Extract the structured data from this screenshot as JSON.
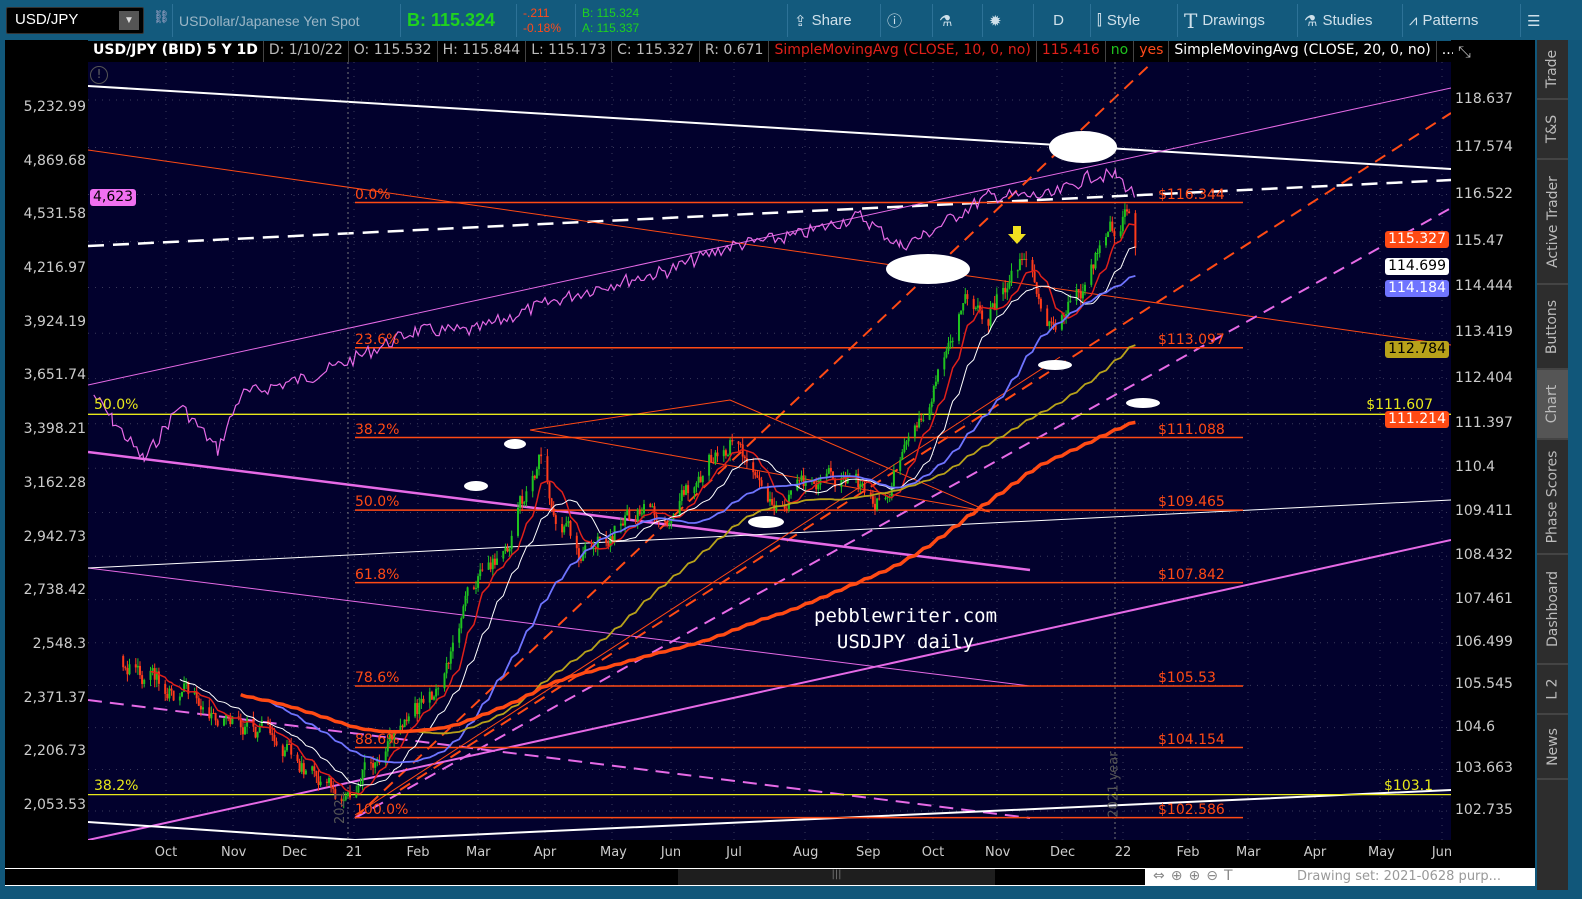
{
  "toolbar": {
    "symbol": "USD/JPY",
    "description": "USDollar/Japanese Yen Spot",
    "bid_big": "B: 115.324",
    "change": "-.211",
    "change_pct": "-0.18%",
    "bid": "B: 115.324",
    "ask": "A: 115.337",
    "buttons": {
      "share": "Share",
      "period": "D",
      "style": "Style",
      "drawings": "Drawings",
      "studies": "Studies",
      "patterns": "Patterns"
    }
  },
  "infobar": {
    "title": "USD/JPY (BID) 5 Y 1D",
    "date": "D: 1/10/22",
    "open": "O: 115.532",
    "high": "H: 115.844",
    "low": "L: 115.173",
    "close": "C: 115.327",
    "range": "R: 0.671",
    "study1": "SimpleMovingAvg (CLOSE, 10, 0, no)",
    "study1_value": "115.416",
    "no": "no",
    "yes": "yes",
    "study2": "SimpleMovingAvg (CLOSE, 20, 0, no)",
    "more": "..."
  },
  "sidebar": [
    "Trade",
    "T&S",
    "Active Trader",
    "Buttons",
    "Chart",
    "Phase Scores",
    "Dashboard",
    "L 2",
    "News"
  ],
  "sidebar_selected": "Chart",
  "status": {
    "drawing_set": "Drawing set: 2021-0628 purp..."
  },
  "colors": {
    "toolbar": "#135a7d",
    "chart_bg": "#02012d",
    "up": "#1fc21f",
    "down": "#ff3b1a",
    "sma10": "#e0201a",
    "sma20": "#ffffff",
    "sma50": "#6f74ff",
    "sma100": "#b8a21a",
    "sma200": "#ff4a14",
    "spx": "#e66ae6",
    "fib": "#ff4a14",
    "yellow": "#e8e81a"
  },
  "chart_data": {
    "type": "candlestick",
    "x_ticks": [
      "Oct",
      "Nov",
      "Dec",
      "21",
      "Feb",
      "Mar",
      "Apr",
      "May",
      "Jun",
      "Jul",
      "Aug",
      "Sep",
      "Oct",
      "Nov",
      "Dec",
      "22",
      "Feb",
      "Mar",
      "Apr",
      "May",
      "Jun"
    ],
    "right_axis_ticks": [
      "118.637",
      "117.574",
      "116.522",
      "115.47",
      "114.444",
      "113.419",
      "112.404",
      "111.397",
      "110.4",
      "109.411",
      "108.432",
      "107.461",
      "106.499",
      "105.545",
      "104.6",
      "103.663",
      "102.735"
    ],
    "left_axis_ticks": [
      "5,232.99",
      "4,869.68",
      "4,531.58",
      "4,216.97",
      "3,924.19",
      "3,651.74",
      "3,398.21",
      "3,162.28",
      "2,942.73",
      "2,738.42",
      "2,548.3",
      "2,371.37",
      "2,206.73",
      "2,053.53"
    ],
    "left_axis_scale": "log",
    "price_path": [
      [
        "2020-09-15",
        106.2
      ],
      [
        "2020-10-01",
        105.7
      ],
      [
        "2020-11-01",
        104.8
      ],
      [
        "2020-12-01",
        104.1
      ],
      [
        "2021-01-01",
        103.1
      ],
      [
        "2021-01-15",
        103.9
      ],
      [
        "2021-02-01",
        104.8
      ],
      [
        "2021-02-15",
        105.7
      ],
      [
        "2021-03-01",
        107.5
      ],
      [
        "2021-03-20",
        109.2
      ],
      [
        "2021-04-01",
        110.6
      ],
      [
        "2021-04-20",
        108.3
      ],
      [
        "2021-05-01",
        109.0
      ],
      [
        "2021-06-01",
        109.6
      ],
      [
        "2021-06-20",
        110.6
      ],
      [
        "2021-07-01",
        111.0
      ],
      [
        "2021-07-20",
        109.9
      ],
      [
        "2021-08-01",
        110.1
      ],
      [
        "2021-08-20",
        110.2
      ],
      [
        "2021-09-01",
        110.1
      ],
      [
        "2021-09-15",
        109.9
      ],
      [
        "2021-10-01",
        111.7
      ],
      [
        "2021-10-20",
        114.4
      ],
      [
        "2021-11-01",
        113.9
      ],
      [
        "2021-11-20",
        115.3
      ],
      [
        "2021-12-01",
        113.5
      ],
      [
        "2021-12-15",
        114.2
      ],
      [
        "2022-01-01",
        116.0
      ],
      [
        "2022-01-05",
        116.3
      ],
      [
        "2022-01-10",
        115.327
      ]
    ],
    "spx_path": [
      [
        "2020-09-01",
        3562
      ],
      [
        "2020-09-10",
        3443
      ],
      [
        "2020-09-25",
        3264
      ],
      [
        "2020-10-12",
        3514
      ],
      [
        "2020-10-30",
        3310
      ],
      [
        "2020-11-10",
        3562
      ],
      [
        "2020-12-15",
        3656
      ],
      [
        "2021-01-01",
        3730
      ],
      [
        "2021-02-01",
        3882
      ],
      [
        "2021-03-01",
        3882
      ],
      [
        "2021-04-01",
        4013
      ],
      [
        "2021-05-01",
        4122
      ],
      [
        "2021-06-01",
        4206
      ],
      [
        "2021-07-01",
        4349
      ],
      [
        "2021-08-01",
        4408
      ],
      [
        "2021-09-01",
        4528
      ],
      [
        "2021-09-20",
        4349
      ],
      [
        "2021-10-01",
        4408
      ],
      [
        "2021-11-01",
        4651
      ],
      [
        "2021-12-01",
        4651
      ],
      [
        "2021-12-20",
        4778
      ],
      [
        "2022-01-01",
        4778
      ],
      [
        "2022-01-10",
        4651
      ]
    ],
    "studies": [
      {
        "name": "SimpleMovingAvg (CLOSE, 10, 0, no)",
        "length": 10
      },
      {
        "name": "SimpleMovingAvg (CLOSE, 20, 0, no)",
        "length": 20
      },
      {
        "length": 50
      },
      {
        "length": 100
      },
      {
        "length": 200
      }
    ],
    "price_tags": [
      {
        "value": "115.327",
        "color": "#ff4a14"
      },
      {
        "value": "114.699",
        "color": "#ffffff"
      },
      {
        "value": "114.184",
        "color": "#6f74ff"
      },
      {
        "value": "112.784",
        "color": "#b8a21a"
      },
      {
        "value": "111.214",
        "color": "#ff4a14"
      }
    ],
    "spx_tag": "4,623",
    "fib_levels": [
      {
        "pct": "0.0%",
        "price": "$116.344"
      },
      {
        "pct": "23.6%",
        "price": "$113.097"
      },
      {
        "pct": "38.2%",
        "price": "$111.088"
      },
      {
        "pct": "50.0%",
        "price": "$109.465"
      },
      {
        "pct": "61.8%",
        "price": "$107.842"
      },
      {
        "pct": "78.6%",
        "price": "$105.53"
      },
      {
        "pct": "88.6%",
        "price": "$104.154"
      },
      {
        "pct": "100.0%",
        "price": "$102.586"
      }
    ],
    "yellow_levels": [
      {
        "pct": "50.0%",
        "price": "$111.607"
      },
      {
        "pct": "38.2%",
        "price": "$103.1"
      }
    ],
    "watermark": [
      "pebblewriter.com",
      "USDJPY daily"
    ],
    "year_markers": [
      "2021",
      "2021 year"
    ]
  }
}
